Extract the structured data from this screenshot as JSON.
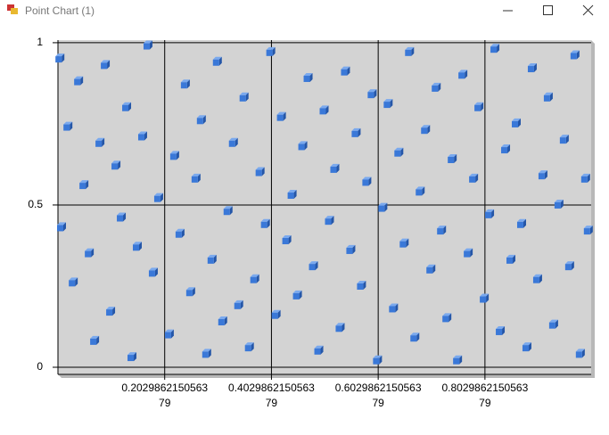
{
  "window": {
    "title": "Point Chart (1)"
  },
  "chart_data": {
    "type": "scatter",
    "color": "#3a78d8",
    "grid": true,
    "xlim": [
      0.003,
      1.002
    ],
    "ylim": [
      -0.022,
      1.008
    ],
    "xticks": [
      0.202986215056379,
      0.402986215056379,
      0.602986215056379,
      0.802986215056379
    ],
    "yticks": [
      0,
      0.5,
      1
    ],
    "x": [
      0.005,
      0.008,
      0.02,
      0.03,
      0.04,
      0.05,
      0.06,
      0.07,
      0.08,
      0.09,
      0.1,
      0.11,
      0.12,
      0.13,
      0.14,
      0.15,
      0.16,
      0.17,
      0.18,
      0.19,
      0.21,
      0.22,
      0.23,
      0.24,
      0.25,
      0.26,
      0.27,
      0.28,
      0.29,
      0.3,
      0.31,
      0.32,
      0.33,
      0.34,
      0.35,
      0.36,
      0.37,
      0.38,
      0.39,
      0.4,
      0.41,
      0.42,
      0.43,
      0.44,
      0.45,
      0.46,
      0.47,
      0.48,
      0.49,
      0.5,
      0.51,
      0.52,
      0.53,
      0.54,
      0.55,
      0.56,
      0.57,
      0.58,
      0.59,
      0.6,
      0.61,
      0.62,
      0.63,
      0.64,
      0.65,
      0.66,
      0.67,
      0.68,
      0.69,
      0.7,
      0.71,
      0.72,
      0.73,
      0.74,
      0.75,
      0.76,
      0.77,
      0.78,
      0.79,
      0.8,
      0.81,
      0.82,
      0.83,
      0.84,
      0.85,
      0.86,
      0.87,
      0.88,
      0.89,
      0.9,
      0.91,
      0.92,
      0.93,
      0.94,
      0.95,
      0.96,
      0.97,
      0.98,
      0.99,
      0.995
    ],
    "values": [
      0.95,
      0.43,
      0.74,
      0.26,
      0.88,
      0.56,
      0.35,
      0.08,
      0.69,
      0.93,
      0.17,
      0.62,
      0.46,
      0.8,
      0.03,
      0.37,
      0.71,
      0.99,
      0.29,
      0.52,
      0.1,
      0.65,
      0.41,
      0.87,
      0.23,
      0.58,
      0.76,
      0.04,
      0.33,
      0.94,
      0.14,
      0.48,
      0.69,
      0.19,
      0.83,
      0.06,
      0.27,
      0.6,
      0.44,
      0.97,
      0.16,
      0.77,
      0.39,
      0.53,
      0.22,
      0.68,
      0.89,
      0.31,
      0.05,
      0.79,
      0.45,
      0.61,
      0.12,
      0.91,
      0.36,
      0.72,
      0.25,
      0.57,
      0.84,
      0.02,
      0.49,
      0.81,
      0.18,
      0.66,
      0.38,
      0.97,
      0.09,
      0.54,
      0.73,
      0.3,
      0.86,
      0.42,
      0.15,
      0.64,
      0.02,
      0.9,
      0.35,
      0.58,
      0.8,
      0.21,
      0.47,
      0.98,
      0.11,
      0.67,
      0.33,
      0.75,
      0.44,
      0.06,
      0.92,
      0.27,
      0.59,
      0.83,
      0.13,
      0.5,
      0.7,
      0.31,
      0.96,
      0.04,
      0.58,
      0.42
    ]
  }
}
